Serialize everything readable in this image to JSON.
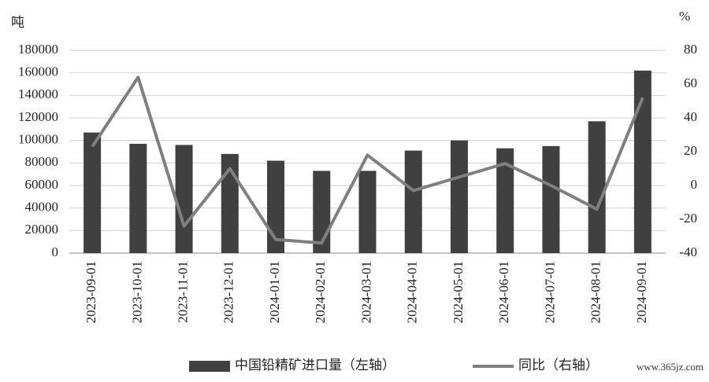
{
  "chart_data": {
    "type": "bar",
    "y_unit_label": "吨",
    "y2_unit_label": "%",
    "categories": [
      "2023-09-01",
      "2023-10-01",
      "2023-11-01",
      "2023-12-01",
      "2024-01-01",
      "2024-02-01",
      "2024-03-01",
      "2024-04-01",
      "2024-05-01",
      "2024-06-01",
      "2024-07-01",
      "2024-08-01",
      "2024-09-01"
    ],
    "series": [
      {
        "name": "中国铅精矿进口量（左轴）",
        "type": "bar",
        "color": "#404040",
        "axis": "y",
        "values": [
          107000,
          97000,
          96000,
          88000,
          82000,
          73000,
          73000,
          91000,
          100000,
          93000,
          95000,
          117000,
          162000
        ]
      },
      {
        "name": "同比（右轴）",
        "type": "line",
        "color": "#7f7f7f",
        "axis": "y2",
        "values": [
          23,
          64,
          -24,
          10,
          -32,
          -34,
          18,
          -3,
          5,
          13,
          0,
          -14,
          52
        ]
      }
    ],
    "ylim": [
      0,
      180000
    ],
    "yticks": [
      0,
      20000,
      40000,
      60000,
      80000,
      100000,
      120000,
      140000,
      160000,
      180000
    ],
    "y2lim": [
      -40,
      80
    ],
    "y2ticks": [
      -40,
      -20,
      0,
      20,
      40,
      60,
      80
    ],
    "grid": true,
    "legend": "bottom",
    "annotation": "www.365jz.com"
  }
}
